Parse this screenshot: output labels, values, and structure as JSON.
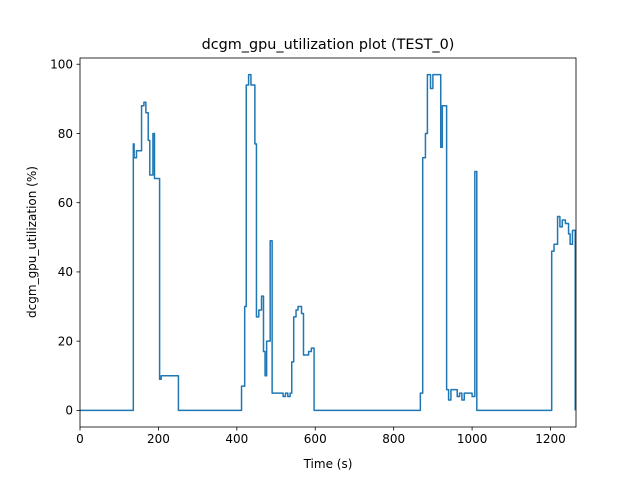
{
  "chart_data": {
    "type": "line",
    "title": "dcgm_gpu_utilization plot (TEST_0)",
    "xlabel": "Time (s)",
    "ylabel": "dcgm_gpu_utilization (%)",
    "xlim": [
      0,
      1265
    ],
    "ylim": [
      -4.8,
      101.8
    ],
    "xticks": [
      0,
      200,
      400,
      600,
      800,
      1000,
      1200
    ],
    "yticks": [
      0,
      20,
      40,
      60,
      80,
      100
    ],
    "grid": false,
    "legend": "none",
    "series": [
      {
        "color": "#1f77b4",
        "step": true,
        "points": [
          [
            0,
            0
          ],
          [
            136,
            0
          ],
          [
            136,
            77
          ],
          [
            138,
            77
          ],
          [
            138,
            73
          ],
          [
            144,
            73
          ],
          [
            144,
            75
          ],
          [
            157,
            75
          ],
          [
            157,
            88
          ],
          [
            163,
            88
          ],
          [
            163,
            89
          ],
          [
            168,
            89
          ],
          [
            168,
            86
          ],
          [
            174,
            86
          ],
          [
            174,
            78
          ],
          [
            178,
            78
          ],
          [
            178,
            68
          ],
          [
            186,
            68
          ],
          [
            186,
            80
          ],
          [
            190,
            80
          ],
          [
            190,
            67
          ],
          [
            203,
            67
          ],
          [
            203,
            9
          ],
          [
            207,
            9
          ],
          [
            207,
            10
          ],
          [
            251,
            10
          ],
          [
            251,
            0
          ],
          [
            412,
            0
          ],
          [
            412,
            7
          ],
          [
            420,
            7
          ],
          [
            420,
            30
          ],
          [
            424,
            30
          ],
          [
            424,
            94
          ],
          [
            430,
            94
          ],
          [
            430,
            97
          ],
          [
            436,
            97
          ],
          [
            436,
            94
          ],
          [
            446,
            94
          ],
          [
            446,
            77
          ],
          [
            450,
            77
          ],
          [
            450,
            27
          ],
          [
            456,
            27
          ],
          [
            456,
            29
          ],
          [
            463,
            29
          ],
          [
            463,
            33
          ],
          [
            468,
            33
          ],
          [
            468,
            17
          ],
          [
            472,
            17
          ],
          [
            472,
            10
          ],
          [
            476,
            10
          ],
          [
            476,
            20
          ],
          [
            485,
            20
          ],
          [
            485,
            49
          ],
          [
            490,
            49
          ],
          [
            490,
            5
          ],
          [
            518,
            5
          ],
          [
            518,
            4
          ],
          [
            524,
            4
          ],
          [
            524,
            5
          ],
          [
            530,
            5
          ],
          [
            530,
            4
          ],
          [
            536,
            4
          ],
          [
            536,
            5
          ],
          [
            540,
            5
          ],
          [
            540,
            14
          ],
          [
            545,
            14
          ],
          [
            545,
            27
          ],
          [
            551,
            27
          ],
          [
            551,
            29
          ],
          [
            556,
            29
          ],
          [
            556,
            30
          ],
          [
            565,
            30
          ],
          [
            565,
            28
          ],
          [
            570,
            28
          ],
          [
            570,
            16
          ],
          [
            583,
            16
          ],
          [
            583,
            17
          ],
          [
            590,
            17
          ],
          [
            590,
            18
          ],
          [
            597,
            18
          ],
          [
            597,
            0
          ],
          [
            868,
            0
          ],
          [
            868,
            5
          ],
          [
            874,
            5
          ],
          [
            874,
            73
          ],
          [
            881,
            73
          ],
          [
            881,
            80
          ],
          [
            886,
            80
          ],
          [
            886,
            97
          ],
          [
            894,
            97
          ],
          [
            894,
            93
          ],
          [
            900,
            93
          ],
          [
            900,
            97
          ],
          [
            920,
            97
          ],
          [
            920,
            76
          ],
          [
            924,
            76
          ],
          [
            924,
            88
          ],
          [
            935,
            88
          ],
          [
            935,
            6
          ],
          [
            940,
            6
          ],
          [
            940,
            3
          ],
          [
            946,
            3
          ],
          [
            946,
            6
          ],
          [
            962,
            6
          ],
          [
            962,
            4
          ],
          [
            968,
            4
          ],
          [
            968,
            5
          ],
          [
            974,
            5
          ],
          [
            974,
            3
          ],
          [
            980,
            3
          ],
          [
            980,
            5
          ],
          [
            1000,
            5
          ],
          [
            1000,
            4
          ],
          [
            1007,
            4
          ],
          [
            1007,
            69
          ],
          [
            1012,
            69
          ],
          [
            1012,
            0
          ],
          [
            1203,
            0
          ],
          [
            1203,
            46
          ],
          [
            1209,
            46
          ],
          [
            1209,
            48
          ],
          [
            1218,
            48
          ],
          [
            1218,
            56
          ],
          [
            1224,
            56
          ],
          [
            1224,
            53
          ],
          [
            1230,
            53
          ],
          [
            1230,
            55
          ],
          [
            1238,
            55
          ],
          [
            1238,
            54
          ],
          [
            1246,
            54
          ],
          [
            1246,
            51
          ],
          [
            1250,
            51
          ],
          [
            1250,
            48
          ],
          [
            1256,
            48
          ],
          [
            1256,
            52
          ],
          [
            1263,
            52
          ],
          [
            1263,
            0
          ]
        ]
      }
    ]
  }
}
